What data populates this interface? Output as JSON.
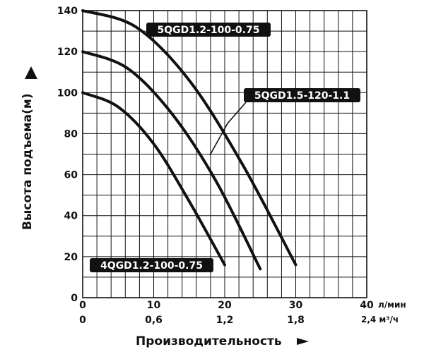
{
  "chart_data": {
    "type": "line",
    "xlabel": "Производительность",
    "ylabel": "Высота подъема(м)",
    "x_unit_primary": "л/мин",
    "x_unit_secondary": "2,4 м³/ч",
    "xlim": [
      0,
      40
    ],
    "ylim": [
      0,
      140
    ],
    "x_ticks": [
      "0",
      "10",
      "20",
      "30",
      "40"
    ],
    "x_ticks_secondary": [
      "0",
      "0,6",
      "1,2",
      "1,8"
    ],
    "y_ticks": [
      "0",
      "20",
      "40",
      "60",
      "80",
      "100",
      "120",
      "140"
    ],
    "grid": true,
    "series": [
      {
        "name": "5QGD1.2-100-0.75",
        "x": [
          0,
          7.5,
          15,
          22.5,
          30
        ],
        "y": [
          140,
          132,
          106,
          65,
          16
        ]
      },
      {
        "name": "5QGD1.5-120-1.1",
        "x": [
          0,
          6.25,
          12.5,
          18.75,
          25
        ],
        "y": [
          120,
          112,
          90,
          57,
          14
        ]
      },
      {
        "name": "4QGD1.2-100-0.75",
        "x": [
          0,
          5,
          10,
          15,
          20
        ],
        "y": [
          100,
          93,
          75,
          47,
          16
        ]
      }
    ]
  }
}
